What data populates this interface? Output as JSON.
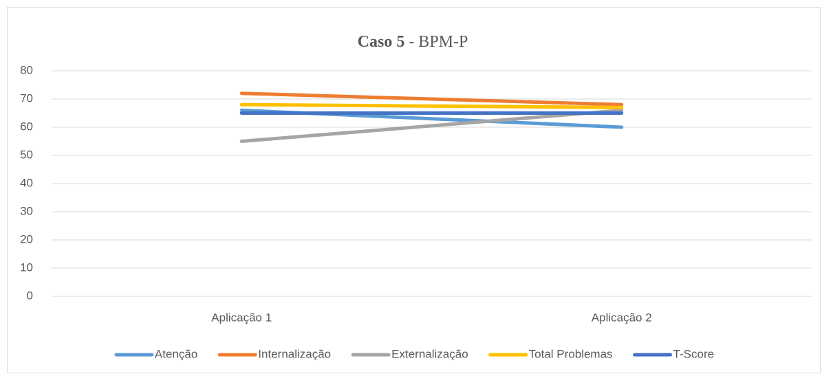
{
  "chart_data": {
    "type": "line",
    "title": [
      "Caso 5",
      "- BPM-P"
    ],
    "categories": [
      "Aplicação 1",
      "Aplicação 2"
    ],
    "series": [
      {
        "name": "Atenção",
        "color": "#5b9bd5",
        "values": [
          66,
          60
        ]
      },
      {
        "name": "Internalização",
        "color": "#ed7d31",
        "values": [
          72,
          68
        ]
      },
      {
        "name": "Externalização",
        "color": "#a5a5a5",
        "values": [
          55,
          66
        ]
      },
      {
        "name": "Total Problemas",
        "color": "#ffc000",
        "values": [
          68,
          67
        ]
      },
      {
        "name": "T-Score",
        "color": "#4472c4",
        "values": [
          65,
          65
        ]
      }
    ],
    "ylim": [
      0,
      80
    ],
    "yticks": [
      0,
      10,
      20,
      30,
      40,
      50,
      60,
      70,
      80
    ],
    "grid": true,
    "legend": "bottom"
  }
}
